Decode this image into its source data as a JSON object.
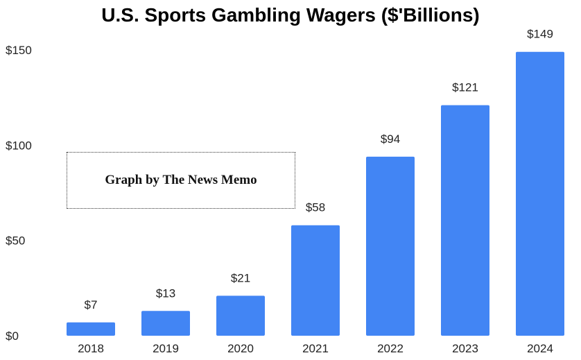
{
  "chart_data": {
    "type": "bar",
    "title": "U.S. Sports Gambling Wagers ($'Billions)",
    "categories": [
      "2018",
      "2019",
      "2020",
      "2021",
      "2022",
      "2023",
      "2024"
    ],
    "values": [
      7,
      13,
      21,
      58,
      94,
      121,
      149
    ],
    "data_labels": [
      "$7",
      "$13",
      "$21",
      "$58",
      "$94",
      "$121",
      "$149"
    ],
    "y_ticks": [
      0,
      50,
      100,
      150
    ],
    "y_tick_labels": [
      "$0",
      "$50",
      "$100",
      "$150"
    ],
    "ylim": [
      0,
      150
    ],
    "xlabel": "",
    "ylabel": "",
    "grid": false,
    "legend": "none",
    "bar_color": "#4285f4",
    "annotation": "Graph by The News Memo"
  }
}
